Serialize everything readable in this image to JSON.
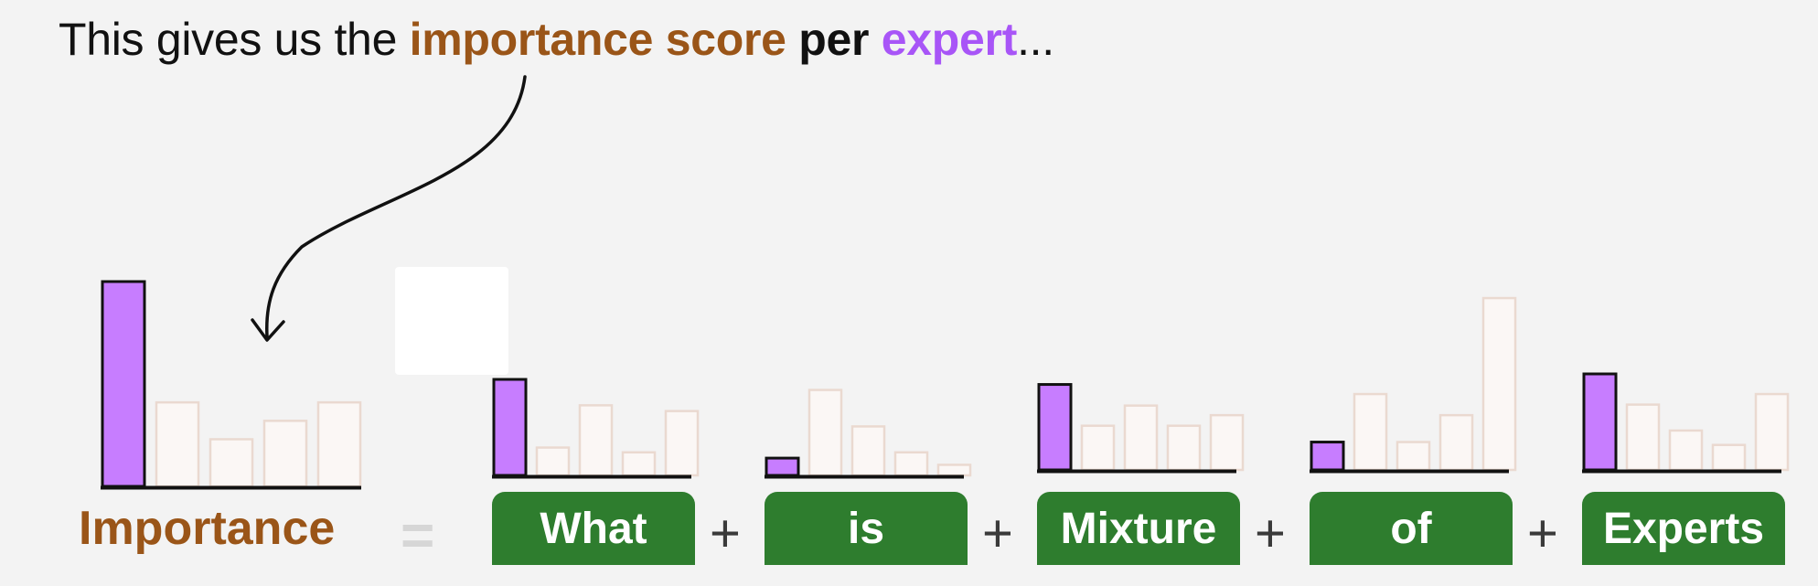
{
  "headline": {
    "part1": "This gives us the ",
    "importance": "importance score",
    "per": " per ",
    "expert": "expert",
    "ellipsis": "..."
  },
  "equation": {
    "lhs": "Importance",
    "equals": "=",
    "plus": "+",
    "tokens": [
      "What",
      "is",
      "Mixture",
      "of",
      "Experts"
    ]
  },
  "colors": {
    "expert_bar": "#c77dff",
    "other_bar": "#fbf7f5",
    "token_bg": "#2e7d2e",
    "importance_text": "#9a5518",
    "expert_text": "#a855f7"
  },
  "chart_data": {
    "type": "bar",
    "note_units": "relative heights, unitless",
    "importance": [
      100,
      41,
      23,
      32,
      41
    ],
    "per_token": [
      {
        "token": "What",
        "values": [
          100,
          29,
          73,
          24,
          67
        ]
      },
      {
        "token": "is",
        "values": [
          18,
          89,
          51,
          24,
          11
        ]
      },
      {
        "token": "Mixture",
        "values": [
          89,
          46,
          67,
          46,
          57
        ]
      },
      {
        "token": "of",
        "values": [
          29,
          79,
          29,
          57,
          179
        ]
      },
      {
        "token": "Experts",
        "values": [
          100,
          68,
          41,
          26,
          79
        ]
      }
    ]
  }
}
